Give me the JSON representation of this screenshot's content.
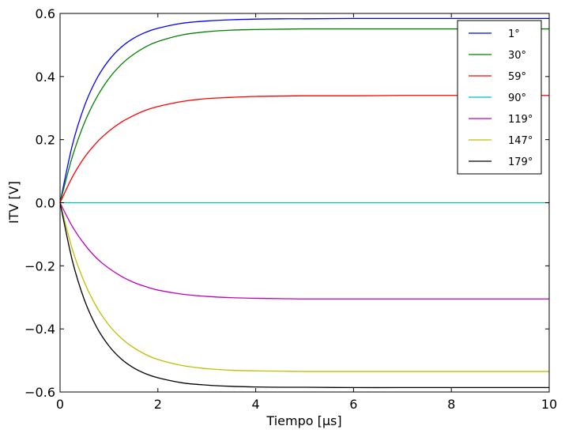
{
  "chart_data": {
    "type": "line",
    "title": "",
    "xlabel": "Tiempo [μs]",
    "ylabel": "ITV [V]",
    "xlim": [
      0,
      10
    ],
    "ylim": [
      -0.6,
      0.6
    ],
    "x_ticks": [
      0,
      2,
      4,
      6,
      8,
      10
    ],
    "x_tick_labels": [
      "0",
      "2",
      "4",
      "6",
      "8",
      "10"
    ],
    "y_ticks": [
      -0.6,
      -0.4,
      -0.2,
      0.0,
      0.2,
      0.4,
      0.6
    ],
    "y_tick_labels": [
      "−0.6",
      "−0.4",
      "−0.2",
      "0.0",
      "0.2",
      "0.4",
      "0.6"
    ],
    "grid": false,
    "legend_position": "top-right",
    "x": [
      0,
      0.25,
      0.5,
      0.75,
      1,
      1.25,
      1.5,
      1.75,
      2,
      2.5,
      3,
      3.5,
      4,
      4.5,
      5,
      6,
      7,
      8,
      9,
      10
    ],
    "series": [
      {
        "name": "1°",
        "color": "#0000ff",
        "values": [
          0,
          0.182,
          0.307,
          0.393,
          0.452,
          0.493,
          0.521,
          0.54,
          0.553,
          0.569,
          0.576,
          0.58,
          0.582,
          0.583,
          0.583,
          0.584,
          0.584,
          0.584,
          0.584,
          0.584
        ]
      },
      {
        "name": "30°",
        "color": "#008000",
        "values": [
          0,
          0.145,
          0.254,
          0.334,
          0.394,
          0.438,
          0.47,
          0.494,
          0.511,
          0.532,
          0.542,
          0.547,
          0.549,
          0.55,
          0.551,
          0.551,
          0.551,
          0.551,
          0.551,
          0.551
        ]
      },
      {
        "name": "59°",
        "color": "#ff0000",
        "values": [
          0,
          0.081,
          0.144,
          0.191,
          0.227,
          0.255,
          0.276,
          0.293,
          0.305,
          0.321,
          0.33,
          0.334,
          0.337,
          0.338,
          0.339,
          0.339,
          0.34,
          0.34,
          0.34,
          0.34
        ]
      },
      {
        "name": "90°",
        "color": "#00bfbf",
        "values": [
          0,
          0,
          0,
          0,
          0,
          0,
          0,
          0,
          0,
          0,
          0,
          0,
          0,
          0,
          0,
          0,
          0,
          0,
          0,
          0
        ]
      },
      {
        "name": "119°",
        "color": "#bf00bf",
        "values": [
          0,
          -0.075,
          -0.132,
          -0.176,
          -0.208,
          -0.233,
          -0.252,
          -0.266,
          -0.277,
          -0.29,
          -0.297,
          -0.301,
          -0.303,
          -0.304,
          -0.305,
          -0.305,
          -0.305,
          -0.305,
          -0.305,
          -0.305
        ]
      },
      {
        "name": "147°",
        "color": "#bfbf00",
        "values": [
          0,
          -0.147,
          -0.253,
          -0.331,
          -0.388,
          -0.429,
          -0.459,
          -0.481,
          -0.497,
          -0.516,
          -0.526,
          -0.531,
          -0.533,
          -0.534,
          -0.535,
          -0.535,
          -0.535,
          -0.535,
          -0.535,
          -0.535
        ]
      },
      {
        "name": "179°",
        "color": "#000000",
        "values": [
          0,
          -0.183,
          -0.309,
          -0.395,
          -0.454,
          -0.495,
          -0.523,
          -0.542,
          -0.555,
          -0.571,
          -0.578,
          -0.582,
          -0.584,
          -0.585,
          -0.585,
          -0.586,
          -0.586,
          -0.586,
          -0.586,
          -0.586
        ]
      }
    ]
  }
}
